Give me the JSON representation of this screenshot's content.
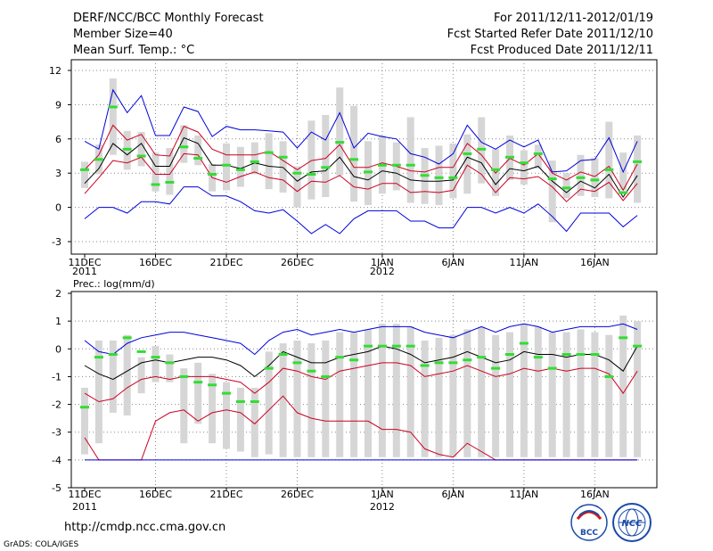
{
  "header": {
    "left": [
      "DERF/NCC/BCC Monthly Forecast",
      "Member Size=40",
      "Mean Surf. Temp.: °C"
    ],
    "right": [
      "For 2011/12/11-2012/01/19",
      "Fcst Started Refer Date 2011/12/10",
      "Fcst Produced Date 2011/12/11"
    ]
  },
  "footer": {
    "url": "http://cmdp.ncc.cma.gov.cn",
    "credit": "GrADS: COLA/IGES",
    "logo_bcc": "BCC",
    "logo_ncc": "NCC"
  },
  "colors": {
    "envelope": "#0000dd",
    "quartile": "#cc0022",
    "mean": "#000000",
    "box": "#d6d6d6",
    "median": "#33dd33",
    "frame": "#000000"
  },
  "chart_data": [
    {
      "type": "line",
      "title": "Mean Surf. Temp.: °C",
      "ylim": [
        -4,
        13
      ],
      "yticks": [
        "12",
        "9",
        "6",
        "3",
        "0",
        "-3"
      ],
      "x_start": "2011-12-11",
      "days": 40,
      "xticks": [
        {
          "day": 0,
          "label": "11DEC",
          "year": "2011"
        },
        {
          "day": 5,
          "label": "16DEC"
        },
        {
          "day": 10,
          "label": "21DEC"
        },
        {
          "day": 15,
          "label": "26DEC"
        },
        {
          "day": 21,
          "label": "1JAN",
          "year": "2012"
        },
        {
          "day": 26,
          "label": "6JAN"
        },
        {
          "day": 31,
          "label": "11JAN"
        },
        {
          "day": 36,
          "label": "16JAN"
        }
      ],
      "series": [
        {
          "name": "max",
          "values": [
            5.8,
            5.1,
            10.3,
            8.3,
            9.8,
            6.3,
            6.3,
            8.8,
            8.4,
            6.2,
            7.1,
            6.8,
            6.8,
            6.7,
            6.6,
            5.2,
            6.6,
            5.9,
            8.3,
            5.2,
            6.5,
            6.2,
            6.0,
            4.7,
            4.4,
            3.8,
            4.7,
            7.2,
            5.7,
            5.1,
            5.9,
            5.3,
            5.9,
            3.1,
            3.2,
            4.1,
            4.2,
            6.1,
            3.1,
            5.8
          ]
        },
        {
          "name": "q75",
          "values": [
            3.3,
            4.6,
            7.2,
            5.9,
            6.4,
            4.6,
            4.5,
            7.1,
            6.6,
            5.1,
            4.6,
            4.6,
            4.6,
            4.9,
            4.1,
            3.3,
            4.1,
            4.3,
            5.5,
            3.5,
            3.5,
            3.9,
            3.6,
            3.2,
            3.1,
            3.5,
            3.5,
            5.6,
            4.6,
            3.0,
            4.3,
            3.7,
            4.7,
            3.0,
            2.4,
            3.1,
            2.7,
            3.6,
            1.5,
            3.8
          ]
        },
        {
          "name": "mean",
          "values": [
            2.1,
            3.4,
            5.6,
            4.6,
            5.6,
            3.6,
            3.6,
            6.1,
            5.6,
            3.7,
            3.7,
            3.4,
            3.9,
            3.6,
            3.5,
            2.3,
            3.1,
            3.2,
            4.4,
            2.7,
            2.4,
            3.2,
            3.0,
            2.4,
            2.3,
            2.3,
            2.4,
            4.4,
            3.9,
            2.0,
            3.4,
            3.2,
            3.6,
            2.3,
            1.3,
            2.3,
            1.7,
            2.9,
            0.9,
            2.8
          ]
        },
        {
          "name": "q25",
          "values": [
            1.2,
            2.6,
            4.1,
            3.9,
            4.4,
            2.9,
            2.9,
            4.7,
            4.6,
            2.6,
            2.2,
            2.7,
            3.1,
            2.6,
            2.4,
            1.4,
            2.3,
            2.2,
            2.8,
            1.8,
            1.6,
            2.1,
            2.1,
            1.3,
            1.4,
            1.3,
            1.5,
            3.7,
            2.9,
            1.3,
            2.6,
            2.5,
            2.7,
            1.8,
            0.5,
            1.6,
            1.4,
            2.2,
            0.6,
            2.1
          ]
        },
        {
          "name": "min",
          "values": [
            -1.0,
            0.0,
            0.0,
            -0.5,
            0.5,
            0.5,
            0.3,
            1.8,
            1.8,
            1.0,
            1.0,
            0.5,
            -0.3,
            -0.5,
            -0.2,
            -1.2,
            -2.3,
            -1.5,
            -2.3,
            -1.0,
            -0.3,
            -0.3,
            -0.3,
            -1.2,
            -1.2,
            -1.8,
            -1.8,
            0.0,
            0.0,
            -0.5,
            0.0,
            -0.5,
            0.3,
            -0.8,
            -2.1,
            -0.5,
            -0.5,
            -0.5,
            -1.7,
            -0.7
          ]
        }
      ],
      "boxes": [
        {
          "lo": 1.7,
          "hi": 4.0,
          "med": 3.3
        },
        {
          "lo": 2.9,
          "hi": 5.5,
          "med": 4.2
        },
        {
          "lo": 4.6,
          "hi": 11.3,
          "med": 8.8
        },
        {
          "lo": 3.3,
          "hi": 6.7,
          "med": 5.1
        },
        {
          "lo": 3.6,
          "hi": 6.6,
          "med": 4.5
        },
        {
          "lo": 1.4,
          "hi": 4.8,
          "med": 2.0
        },
        {
          "lo": 1.1,
          "hi": 5.2,
          "med": 2.2
        },
        {
          "lo": 3.9,
          "hi": 7.2,
          "med": 5.3
        },
        {
          "lo": 3.7,
          "hi": 6.3,
          "med": 4.3
        },
        {
          "lo": 1.4,
          "hi": 3.8,
          "med": 2.9
        },
        {
          "lo": 1.5,
          "hi": 5.6,
          "med": 3.7
        },
        {
          "lo": 1.8,
          "hi": 5.3,
          "med": 3.3
        },
        {
          "lo": 2.9,
          "hi": 5.7,
          "med": 4.0
        },
        {
          "lo": 1.6,
          "hi": 6.5,
          "med": 4.8
        },
        {
          "lo": 1.3,
          "hi": 5.8,
          "med": 4.4
        },
        {
          "lo": 0.0,
          "hi": 3.6,
          "med": 3.0
        },
        {
          "lo": 0.7,
          "hi": 7.6,
          "med": 2.9
        },
        {
          "lo": 0.9,
          "hi": 8.1,
          "med": 3.5
        },
        {
          "lo": 2.8,
          "hi": 10.5,
          "med": 5.7
        },
        {
          "lo": 0.5,
          "hi": 8.9,
          "med": 4.2
        },
        {
          "lo": 0.2,
          "hi": 5.8,
          "med": 3.1
        },
        {
          "lo": 1.2,
          "hi": 6.3,
          "med": 3.7
        },
        {
          "lo": 1.5,
          "hi": 5.7,
          "med": 3.7
        },
        {
          "lo": 0.4,
          "hi": 7.9,
          "med": 3.7
        },
        {
          "lo": 0.3,
          "hi": 5.2,
          "med": 2.8
        },
        {
          "lo": 0.2,
          "hi": 5.4,
          "med": 2.6
        },
        {
          "lo": 0.8,
          "hi": 5.6,
          "med": 2.6
        },
        {
          "lo": 1.2,
          "hi": 6.4,
          "med": 4.7
        },
        {
          "lo": 2.1,
          "hi": 7.9,
          "med": 5.1
        },
        {
          "lo": 1.0,
          "hi": 5.1,
          "med": 3.3
        },
        {
          "lo": 2.4,
          "hi": 6.3,
          "med": 4.4
        },
        {
          "lo": 2.0,
          "hi": 5.0,
          "med": 3.9
        },
        {
          "lo": 3.4,
          "hi": 5.5,
          "med": 4.7
        },
        {
          "lo": -1.3,
          "hi": 4.1,
          "med": 2.5
        },
        {
          "lo": 0.8,
          "hi": 3.0,
          "med": 1.7
        },
        {
          "lo": 1.0,
          "hi": 4.6,
          "med": 2.6
        },
        {
          "lo": 0.9,
          "hi": 4.3,
          "med": 2.4
        },
        {
          "lo": 0.8,
          "hi": 7.5,
          "med": 3.3
        },
        {
          "lo": 1.5,
          "hi": 4.8,
          "med": 1.3
        },
        {
          "lo": 0.4,
          "hi": 6.3,
          "med": 4.0
        }
      ]
    },
    {
      "type": "line",
      "title": "Prec.: log(mm/d)",
      "ylim": [
        -5,
        2
      ],
      "yticks": [
        "2",
        "1",
        "0",
        "-1",
        "-2",
        "-3",
        "-4",
        "-5"
      ],
      "x_start": "2011-12-11",
      "days": 40,
      "xticks": [
        {
          "day": 0,
          "label": "11DEC",
          "year": "2011"
        },
        {
          "day": 5,
          "label": "16DEC"
        },
        {
          "day": 10,
          "label": "21DEC"
        },
        {
          "day": 15,
          "label": "26DEC"
        },
        {
          "day": 21,
          "label": "1JAN",
          "year": "2012"
        },
        {
          "day": 26,
          "label": "6JAN"
        },
        {
          "day": 31,
          "label": "11JAN"
        },
        {
          "day": 36,
          "label": "16JAN"
        }
      ],
      "series": [
        {
          "name": "max",
          "values": [
            0.3,
            -0.1,
            -0.2,
            0.2,
            0.4,
            0.5,
            0.6,
            0.6,
            0.5,
            0.4,
            0.3,
            0.2,
            -0.2,
            0.3,
            0.6,
            0.7,
            0.5,
            0.6,
            0.7,
            0.6,
            0.7,
            0.8,
            0.8,
            0.8,
            0.6,
            0.5,
            0.4,
            0.6,
            0.8,
            0.6,
            0.8,
            0.9,
            0.8,
            0.6,
            0.7,
            0.8,
            0.8,
            0.8,
            0.9,
            0.7
          ]
        },
        {
          "name": "mean",
          "values": [
            -0.6,
            -0.9,
            -1.1,
            -0.8,
            -0.5,
            -0.4,
            -0.5,
            -0.4,
            -0.3,
            -0.3,
            -0.4,
            -0.6,
            -1.0,
            -0.6,
            -0.1,
            -0.3,
            -0.5,
            -0.5,
            -0.3,
            -0.2,
            -0.1,
            0.1,
            0.0,
            -0.2,
            -0.5,
            -0.4,
            -0.3,
            -0.1,
            -0.3,
            -0.5,
            -0.4,
            -0.1,
            -0.2,
            -0.2,
            -0.3,
            -0.2,
            -0.2,
            -0.4,
            -0.8,
            0.1
          ]
        },
        {
          "name": "q25",
          "values": [
            -1.6,
            -1.9,
            -1.8,
            -1.4,
            -1.1,
            -1.0,
            -1.1,
            -1.0,
            -1.0,
            -1.0,
            -1.1,
            -1.2,
            -1.6,
            -1.2,
            -0.7,
            -0.8,
            -1.0,
            -1.1,
            -0.8,
            -0.7,
            -0.6,
            -0.5,
            -0.5,
            -0.6,
            -1.0,
            -0.9,
            -0.8,
            -0.6,
            -0.8,
            -1.0,
            -0.9,
            -0.7,
            -0.8,
            -0.7,
            -0.8,
            -0.7,
            -0.7,
            -0.9,
            -1.6,
            -0.8
          ]
        },
        {
          "name": "q10",
          "values": [
            -3.2,
            -4.0,
            -4.0,
            -4.0,
            -4.0,
            -2.6,
            -2.3,
            -2.2,
            -2.6,
            -2.3,
            -2.2,
            -2.3,
            -2.7,
            -2.2,
            -1.7,
            -2.3,
            -2.5,
            -2.6,
            -2.6,
            -2.6,
            -2.6,
            -2.9,
            -2.9,
            -3.0,
            -3.6,
            -3.8,
            -3.9,
            -3.4,
            -3.7,
            -4.0,
            -4.0,
            -4.0,
            -4.0,
            -4.0,
            -4.0,
            -4.0,
            -4.0,
            -4.0,
            -4.0,
            -4.0
          ]
        },
        {
          "name": "min",
          "values": [
            -4.0,
            -4.0,
            -4.0,
            -4.0,
            -4.0,
            -4.0,
            -4.0,
            -4.0,
            -4.0,
            -4.0,
            -4.0,
            -4.0,
            -4.0,
            -4.0,
            -4.0,
            -4.0,
            -4.0,
            -4.0,
            -4.0,
            -4.0,
            -4.0,
            -4.0,
            -4.0,
            -4.0,
            -4.0,
            -4.0,
            -4.0,
            -4.0,
            -4.0,
            -4.0,
            -4.0,
            -4.0,
            -4.0,
            -4.0,
            -4.0,
            -4.0,
            -4.0,
            -4.0,
            -4.0,
            -4.0
          ]
        }
      ],
      "boxes": [
        {
          "lo": -3.8,
          "hi": -1.4,
          "med": -2.1
        },
        {
          "lo": -3.4,
          "hi": 0.3,
          "med": -0.3
        },
        {
          "lo": -2.3,
          "hi": 0.3,
          "med": -0.2
        },
        {
          "lo": -2.4,
          "hi": 0.5,
          "med": 0.4
        },
        {
          "lo": -1.6,
          "hi": -0.3,
          "med": -0.1
        },
        {
          "lo": -1.2,
          "hi": 0.1,
          "med": -0.3
        },
        {
          "lo": -1.2,
          "hi": -0.2,
          "med": -0.5
        },
        {
          "lo": -3.4,
          "hi": -0.7,
          "med": -1.0
        },
        {
          "lo": -2.7,
          "hi": -0.5,
          "med": -1.2
        },
        {
          "lo": -3.4,
          "hi": -0.9,
          "med": -1.3
        },
        {
          "lo": -3.6,
          "hi": -1.2,
          "med": -1.6
        },
        {
          "lo": -3.7,
          "hi": -1.4,
          "med": -1.9
        },
        {
          "lo": -3.9,
          "hi": -1.4,
          "med": -1.9
        },
        {
          "lo": -3.8,
          "hi": -0.1,
          "med": -0.7
        },
        {
          "lo": -3.9,
          "hi": 0.2,
          "med": -0.2
        },
        {
          "lo": -3.9,
          "hi": 0.3,
          "med": -0.5
        },
        {
          "lo": -3.9,
          "hi": 0.2,
          "med": -0.8
        },
        {
          "lo": -3.9,
          "hi": 0.3,
          "med": -1.0
        },
        {
          "lo": -3.9,
          "hi": 0.6,
          "med": -0.3
        },
        {
          "lo": -3.9,
          "hi": 0.6,
          "med": -0.4
        },
        {
          "lo": -3.9,
          "hi": 0.7,
          "med": 0.1
        },
        {
          "lo": -3.9,
          "hi": 0.9,
          "med": 0.1
        },
        {
          "lo": -3.9,
          "hi": 0.9,
          "med": 0.1
        },
        {
          "lo": -3.9,
          "hi": 0.8,
          "med": 0.1
        },
        {
          "lo": -3.9,
          "hi": 0.3,
          "med": -0.6
        },
        {
          "lo": -3.9,
          "hi": 0.4,
          "med": -0.5
        },
        {
          "lo": -3.9,
          "hi": 0.5,
          "med": -0.5
        },
        {
          "lo": -3.9,
          "hi": 0.7,
          "med": -0.4
        },
        {
          "lo": -3.9,
          "hi": 0.8,
          "med": -0.3
        },
        {
          "lo": -3.9,
          "hi": 0.5,
          "med": -0.7
        },
        {
          "lo": -3.9,
          "hi": 0.6,
          "med": -0.2
        },
        {
          "lo": -3.9,
          "hi": 0.9,
          "med": 0.2
        },
        {
          "lo": -3.9,
          "hi": 0.8,
          "med": -0.3
        },
        {
          "lo": -3.9,
          "hi": 0.6,
          "med": -0.7
        },
        {
          "lo": -3.9,
          "hi": 0.6,
          "med": -0.2
        },
        {
          "lo": -3.9,
          "hi": 0.7,
          "med": -0.2
        },
        {
          "lo": -3.9,
          "hi": 0.6,
          "med": -0.2
        },
        {
          "lo": -3.9,
          "hi": 0.5,
          "med": -1.0
        },
        {
          "lo": -3.9,
          "hi": 1.2,
          "med": 0.4
        },
        {
          "lo": -3.9,
          "hi": 1.0,
          "med": 0.1
        }
      ]
    }
  ]
}
